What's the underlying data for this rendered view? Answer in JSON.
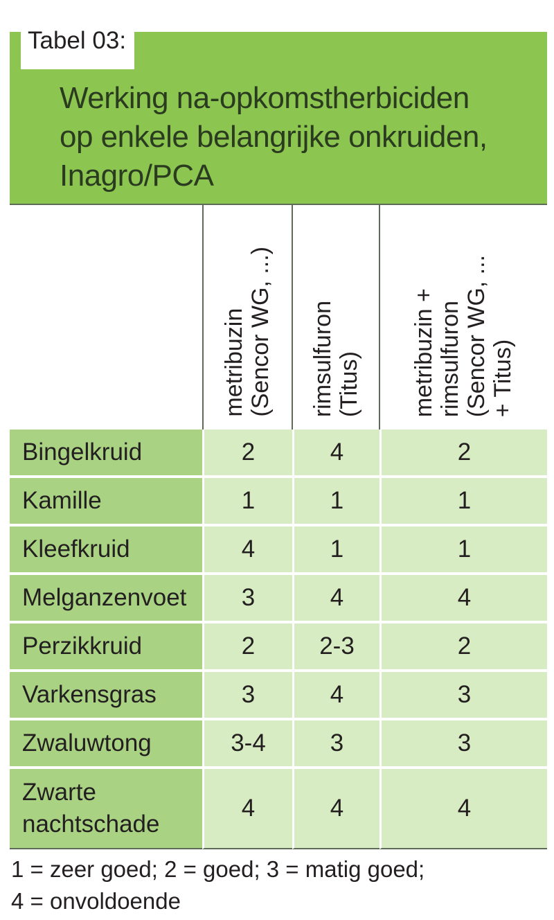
{
  "tag_label": "Tabel 03:",
  "title_lines": [
    "Werking na-opkomstherbiciden",
    "op enkele belangrijke onkruiden,",
    "Inagro/PCA"
  ],
  "columns": [
    {
      "lines": [
        "metribuzin",
        "(Sencor WG, ...)"
      ]
    },
    {
      "lines": [
        "rimsulfuron",
        "(Titus)"
      ]
    },
    {
      "lines": [
        "metribuzin +",
        "rimsulfuron",
        "(Sencor WG, ...",
        "+ Titus)"
      ]
    }
  ],
  "rows": [
    {
      "name": "Bingelkruid",
      "values": [
        "2",
        "4",
        "2"
      ]
    },
    {
      "name": "Kamille",
      "values": [
        "1",
        "1",
        "1"
      ]
    },
    {
      "name": "Kleefkruid",
      "values": [
        "4",
        "1",
        "1"
      ]
    },
    {
      "name": "Melganzenvoet",
      "values": [
        "3",
        "4",
        "4"
      ]
    },
    {
      "name": "Perzikkruid",
      "values": [
        "2",
        "2-3",
        "2"
      ]
    },
    {
      "name": "Varkensgras",
      "values": [
        "3",
        "4",
        "3"
      ]
    },
    {
      "name": "Zwaluwtong",
      "values": [
        "3-4",
        "3",
        "3"
      ]
    },
    {
      "name_lines": [
        "Zwarte",
        "nachtschade"
      ],
      "values": [
        "4",
        "4",
        "4"
      ]
    }
  ],
  "legend_lines": [
    "1 = zeer goed; 2 = goed; 3 = matig goed;",
    "4 = onvoldoende"
  ],
  "colors": {
    "title_band": "#8cc651",
    "name_cells": "#a9d383",
    "value_cells": "#d7ecc3",
    "rule_lines": "#5d6a55"
  }
}
